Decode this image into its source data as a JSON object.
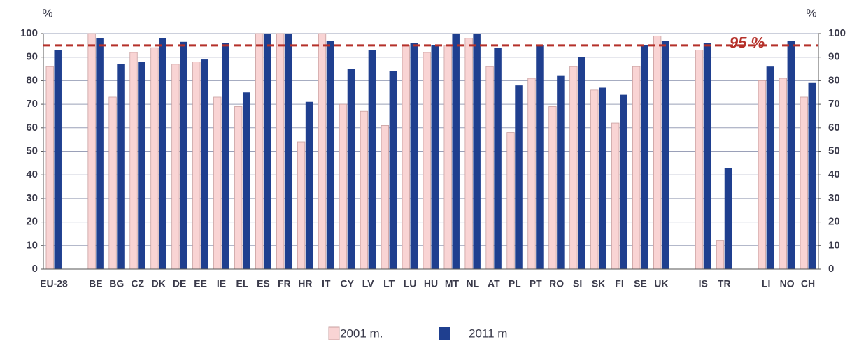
{
  "chart_data": {
    "type": "bar",
    "y_label": "%",
    "categories": [
      "EU-28",
      null,
      "BE",
      "BG",
      "CZ",
      "DK",
      "DE",
      "EE",
      "IE",
      "EL",
      "ES",
      "FR",
      "HR",
      "IT",
      "CY",
      "LV",
      "LT",
      "LU",
      "HU",
      "MT",
      "NL",
      "AT",
      "PL",
      "PT",
      "RO",
      "SI",
      "SK",
      "FI",
      "SE",
      "UK",
      null,
      "IS",
      "TR",
      null,
      "LI",
      "NO",
      "CH"
    ],
    "series": [
      {
        "name": "2001 m.",
        "color": "#f9d4d4",
        "values": [
          86,
          null,
          100,
          73,
          92,
          94,
          87,
          88,
          73,
          69,
          100,
          100,
          54,
          100,
          70,
          67,
          61,
          95,
          92,
          95,
          98,
          86,
          58,
          81,
          69,
          86,
          76,
          62,
          86,
          99,
          null,
          93,
          12,
          null,
          80,
          81,
          73
        ]
      },
      {
        "name": "2011 m",
        "color": "#1f3f8f",
        "values": [
          93,
          null,
          98,
          87,
          88,
          98,
          96.5,
          89,
          96,
          75,
          100,
          100,
          71,
          97,
          85,
          93,
          84,
          96,
          95,
          100,
          100,
          94,
          78,
          95,
          82,
          90,
          77,
          74,
          95,
          97,
          null,
          96,
          43,
          null,
          86,
          97,
          79
        ]
      }
    ],
    "ylim": [
      0,
      100
    ],
    "yticks": [
      0,
      10,
      20,
      30,
      40,
      50,
      60,
      70,
      80,
      90,
      100
    ],
    "grid": true,
    "right_axis_mirror": true,
    "reference_line": {
      "value": 95,
      "label": "95 %",
      "color": "#b5312a"
    },
    "legend": "bottom"
  }
}
